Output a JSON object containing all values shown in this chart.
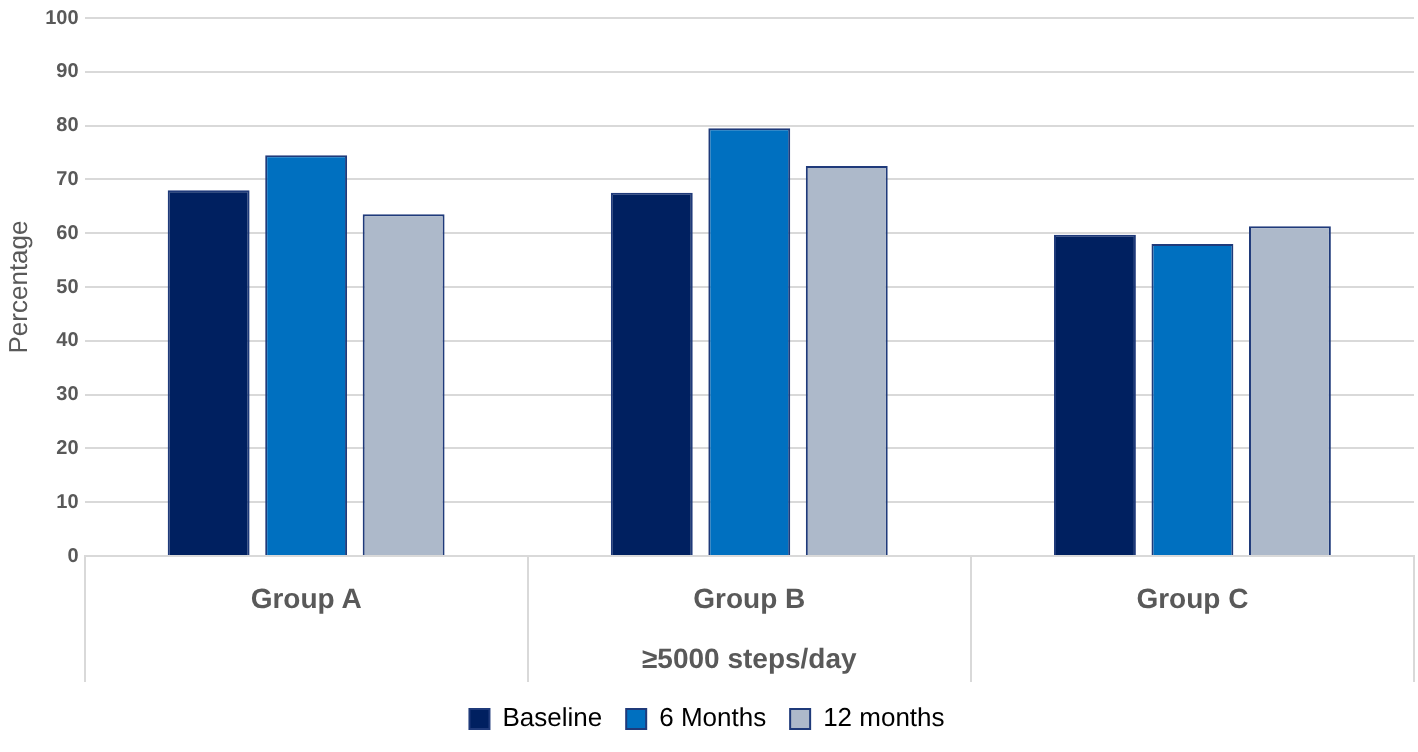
{
  "chart_data": {
    "type": "bar",
    "xlabel": "≥5000 steps/day",
    "ylabel": "Percentage",
    "categories": [
      "Group A",
      "Group B",
      "Group C"
    ],
    "series": [
      {
        "name": "Baseline",
        "color": "#002060",
        "values": [
          68,
          67.5,
          59.7
        ]
      },
      {
        "name": "6 Months",
        "color": "#0070c0",
        "values": [
          74.5,
          79.5,
          58
        ]
      },
      {
        "name": "12 months",
        "color": "#adb9ca",
        "values": [
          63.5,
          72.5,
          61.3
        ]
      }
    ],
    "ylim": [
      0,
      100
    ],
    "yticks": [
      0,
      10,
      20,
      30,
      40,
      50,
      60,
      70,
      80,
      90,
      100
    ],
    "grid": "y",
    "legend": "bottom"
  }
}
